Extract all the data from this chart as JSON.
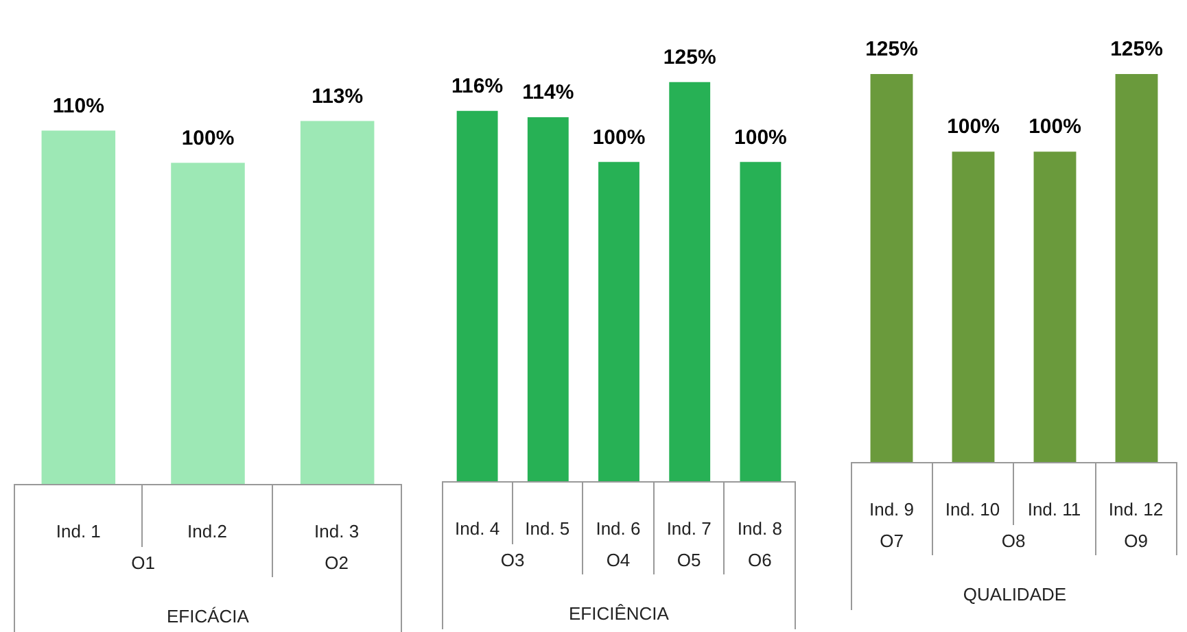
{
  "chart_data": [
    {
      "type": "bar",
      "xlabel": "EFICÁCIA",
      "categories": [
        "Ind. 1",
        "Ind.2",
        "Ind. 3"
      ],
      "values": [
        110,
        100,
        113
      ],
      "value_labels": [
        "110%",
        "100%",
        "113%"
      ],
      "color": "#9de8b5",
      "tick_labels": false,
      "legend": false,
      "annotations": [
        "O1",
        "O2"
      ]
    },
    {
      "type": "bar",
      "xlabel": "EFICIÊNCIA",
      "categories": [
        "Ind. 4",
        "Ind. 5",
        "Ind. 6",
        "Ind. 7",
        "Ind. 8"
      ],
      "values": [
        116,
        114,
        100,
        125,
        100
      ],
      "value_labels": [
        "116%",
        "114%",
        "100%",
        "125%",
        "100%"
      ],
      "color": "#27b155",
      "tick_labels": false,
      "legend": false,
      "annotations": [
        "O3",
        "O4",
        "O5",
        "O6"
      ]
    },
    {
      "type": "bar",
      "xlabel": "QUALIDADE",
      "categories": [
        "Ind. 9",
        "Ind. 10",
        "Ind. 11",
        "Ind. 12"
      ],
      "values": [
        125,
        100,
        100,
        125
      ],
      "value_labels": [
        "125%",
        "100%",
        "100%",
        "125%"
      ],
      "color": "#6a9a3c",
      "tick_labels": false,
      "legend": false,
      "annotations": [
        "O7",
        "O8",
        "O9"
      ]
    }
  ]
}
